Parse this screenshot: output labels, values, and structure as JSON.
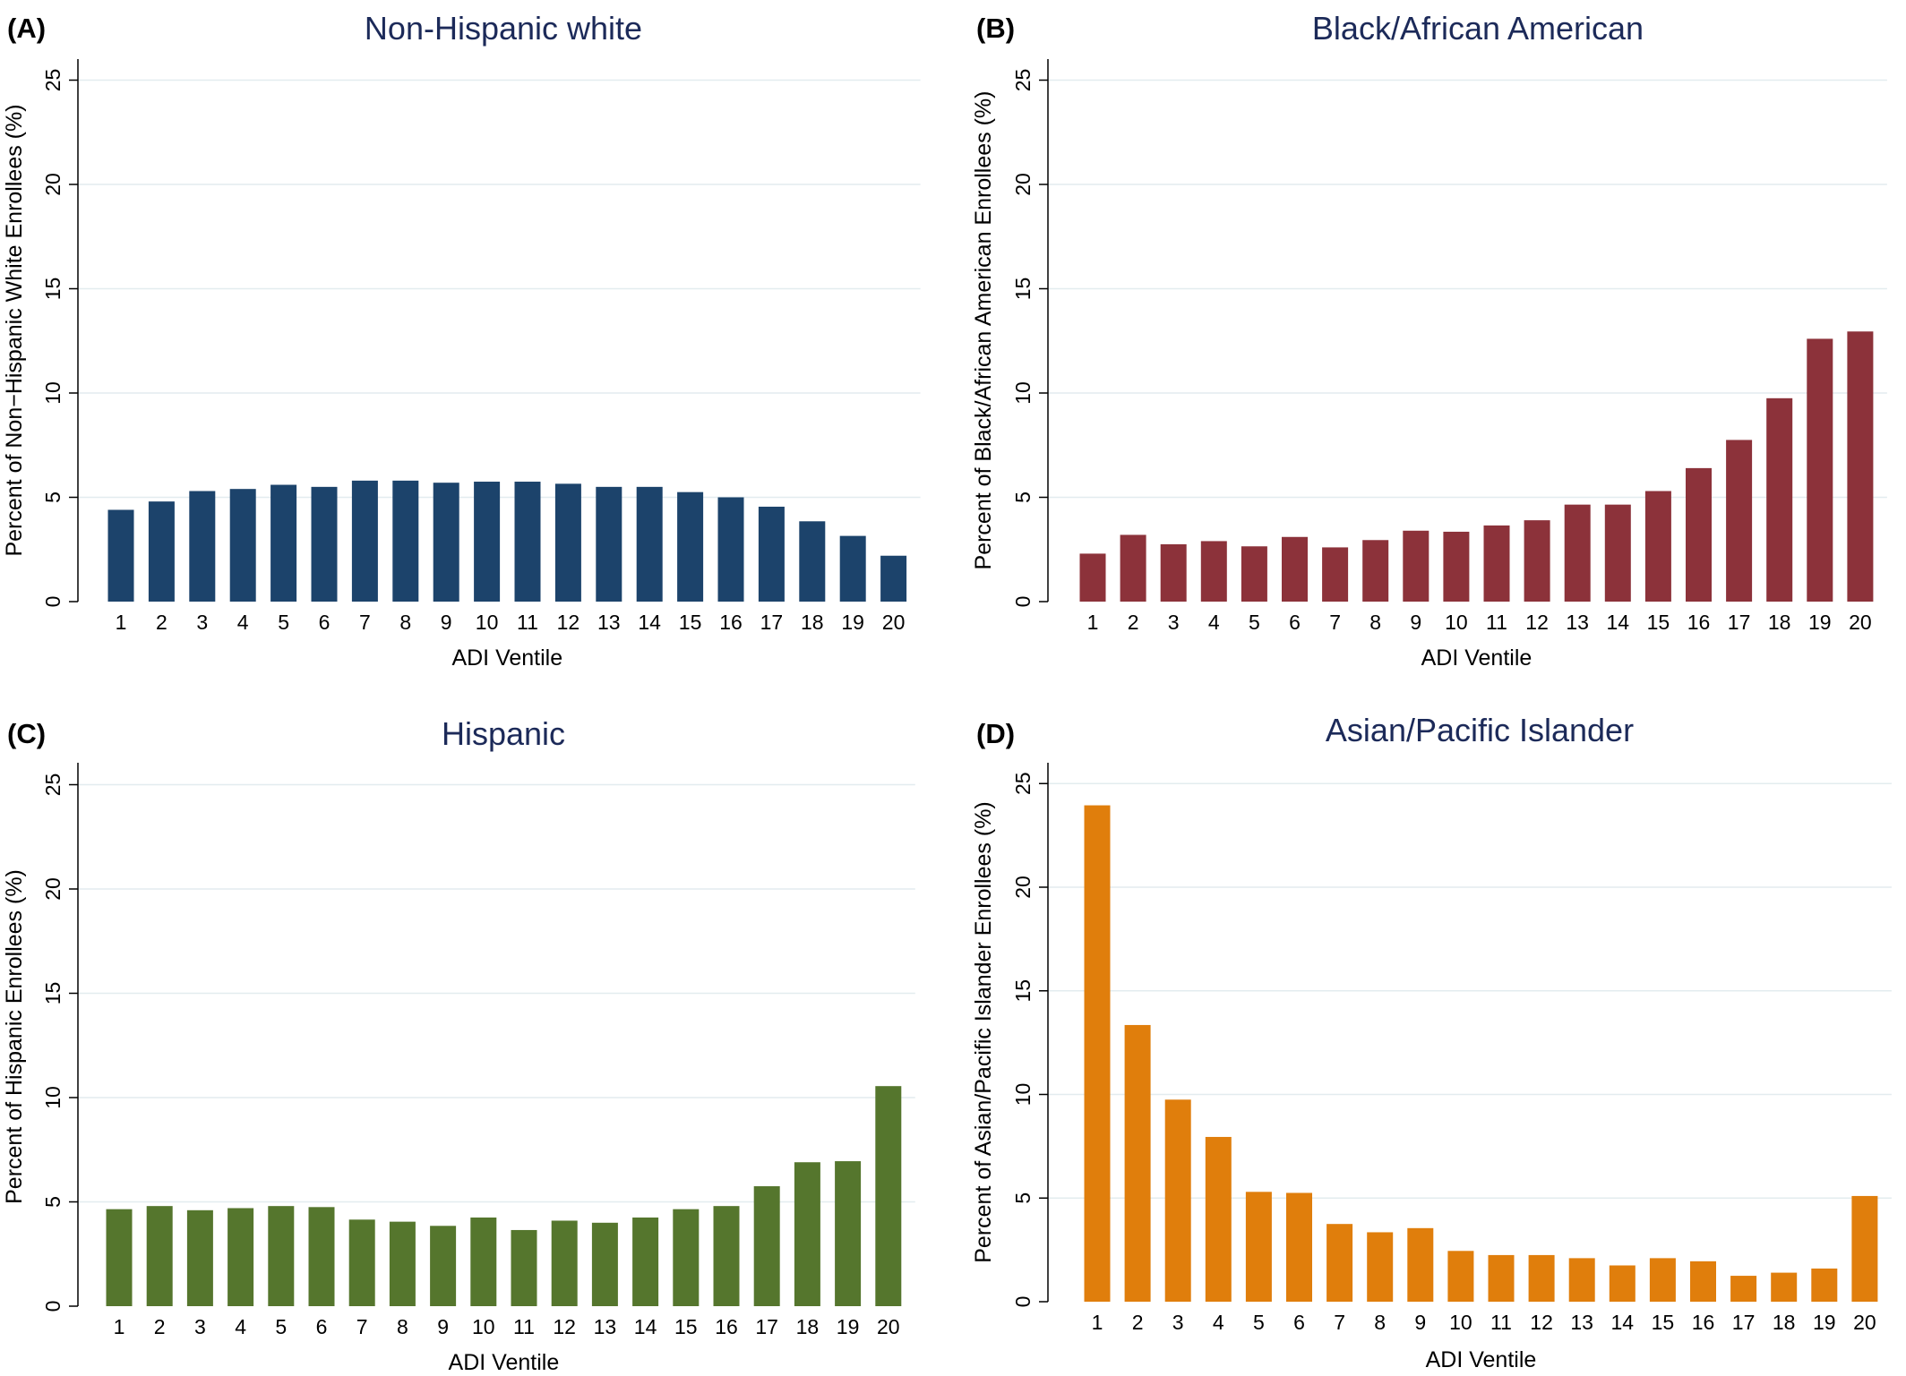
{
  "chart_data": [
    {
      "type": "bar",
      "panel_label": "(A)",
      "title": "Non-Hispanic white",
      "xlabel": "ADI Ventile",
      "ylabel": "Percent of  Non−Hispanic White Enrollees (%)",
      "categories": [
        "1",
        "2",
        "3",
        "4",
        "5",
        "6",
        "7",
        "8",
        "9",
        "10",
        "11",
        "12",
        "13",
        "14",
        "15",
        "16",
        "17",
        "18",
        "19",
        "20"
      ],
      "values": [
        4.4,
        4.8,
        5.3,
        5.4,
        5.6,
        5.5,
        5.8,
        5.8,
        5.7,
        5.75,
        5.75,
        5.65,
        5.5,
        5.5,
        5.25,
        5.0,
        4.55,
        3.85,
        3.15,
        2.2
      ],
      "ylim": [
        0,
        25
      ],
      "yticks": [
        "0",
        "5",
        "10",
        "15",
        "20",
        "25"
      ],
      "grid": true,
      "color": "#1c436b"
    },
    {
      "type": "bar",
      "panel_label": "(B)",
      "title": "Black/African American",
      "xlabel": "ADI Ventile",
      "ylabel": "Percent of Black/African American Enrollees (%)",
      "categories": [
        "1",
        "2",
        "3",
        "4",
        "5",
        "6",
        "7",
        "8",
        "9",
        "10",
        "11",
        "12",
        "13",
        "14",
        "15",
        "16",
        "17",
        "18",
        "19",
        "20"
      ],
      "values": [
        2.3,
        3.2,
        2.75,
        2.9,
        2.65,
        3.1,
        2.6,
        2.95,
        3.4,
        3.35,
        3.65,
        3.9,
        4.65,
        4.65,
        5.3,
        6.4,
        7.75,
        9.75,
        12.6,
        12.95
      ],
      "ylim": [
        0,
        25
      ],
      "yticks": [
        "0",
        "5",
        "10",
        "15",
        "20",
        "25"
      ],
      "grid": true,
      "color": "#8c323a"
    },
    {
      "type": "bar",
      "panel_label": "(C)",
      "title": "Hispanic",
      "xlabel": "ADI Ventile",
      "ylabel": "Percent of Hispanic Enrollees (%)",
      "categories": [
        "1",
        "2",
        "3",
        "4",
        "5",
        "6",
        "7",
        "8",
        "9",
        "10",
        "11",
        "12",
        "13",
        "14",
        "15",
        "16",
        "17",
        "18",
        "19",
        "20"
      ],
      "values": [
        4.65,
        4.8,
        4.6,
        4.7,
        4.8,
        4.75,
        4.15,
        4.05,
        3.85,
        4.25,
        3.65,
        4.1,
        4.0,
        4.25,
        4.65,
        4.8,
        5.75,
        6.9,
        6.95,
        10.55
      ],
      "ylim": [
        0,
        25
      ],
      "yticks": [
        "0",
        "5",
        "10",
        "15",
        "20",
        "25"
      ],
      "grid": true,
      "color": "#55762d"
    },
    {
      "type": "bar",
      "panel_label": "(D)",
      "title": "Asian/Pacific Islander",
      "xlabel": "ADI Ventile",
      "ylabel": "Percent of Asian/Pacific Islander Enrollees (%)",
      "categories": [
        "1",
        "2",
        "3",
        "4",
        "5",
        "6",
        "7",
        "8",
        "9",
        "10",
        "11",
        "12",
        "13",
        "14",
        "15",
        "16",
        "17",
        "18",
        "19",
        "20"
      ],
      "values": [
        23.95,
        13.35,
        9.75,
        7.95,
        5.3,
        5.25,
        3.75,
        3.35,
        3.55,
        2.45,
        2.25,
        2.25,
        2.1,
        1.75,
        2.1,
        1.95,
        1.25,
        1.4,
        1.6,
        5.1
      ],
      "ylim": [
        0,
        25
      ],
      "yticks": [
        "0",
        "5",
        "10",
        "15",
        "20",
        "25"
      ],
      "grid": true,
      "color": "#e07e0c"
    }
  ]
}
